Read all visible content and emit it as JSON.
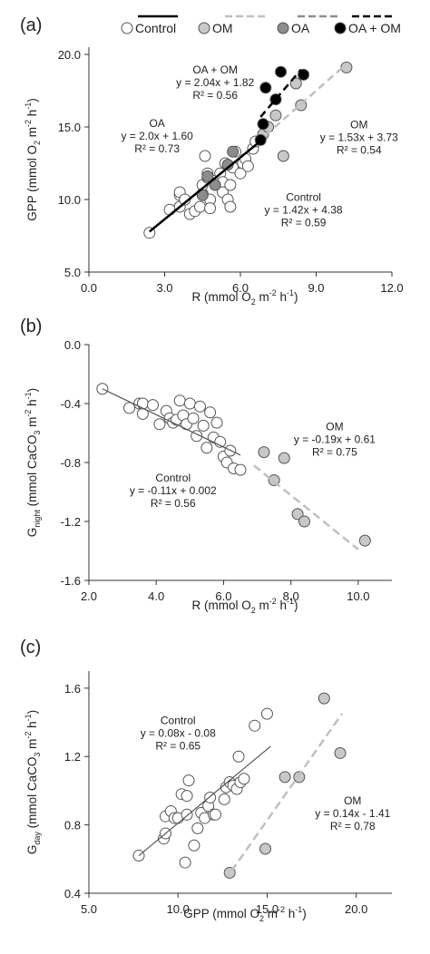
{
  "colors": {
    "control": "#ffffff",
    "om": "#c8c8c8",
    "oa": "#8c8c8c",
    "oa_om": "#000000",
    "outline": "#555555"
  },
  "legend": [
    {
      "label": "Control",
      "line": "solid",
      "line_color": "#000000",
      "fill": "#ffffff"
    },
    {
      "label": "OM",
      "line": "dashed",
      "line_color": "#c0c0c0",
      "fill": "#c8c8c8"
    },
    {
      "label": "OA",
      "line": "dashed",
      "line_color": "#8c8c8c",
      "fill": "#8c8c8c"
    },
    {
      "label": "OA + OM",
      "line": "dashed",
      "line_color": "#000000",
      "fill": "#000000"
    }
  ],
  "chart_data": [
    {
      "panel": "(a)",
      "type": "scatter",
      "xlabel": {
        "main": "R (mmol O",
        "sub": "2",
        "rest": " m",
        "sup": "-2",
        "tail": " h",
        "sup2": "-1",
        "end": ")"
      },
      "ylabel": {
        "main": "GPP (mmol O",
        "sub": "2",
        "rest": " m",
        "sup": "-2",
        "tail": " h",
        "sup2": "-1",
        "end": ")"
      },
      "xlim": [
        0,
        12
      ],
      "ylim": [
        5,
        20.5
      ],
      "xticks": [
        0,
        3,
        6,
        9,
        12
      ],
      "xtick_labels": [
        "0.0",
        "3.0",
        "6.0",
        "9.0",
        "12.0"
      ],
      "yticks": [
        5,
        10,
        15,
        20
      ],
      "ytick_labels": [
        "5.0",
        "10.0",
        "15.0",
        "20.0"
      ],
      "series": [
        {
          "name": "Control",
          "fill": "#ffffff",
          "points": [
            [
              2.4,
              7.7
            ],
            [
              3.2,
              9.3
            ],
            [
              3.6,
              9.5
            ],
            [
              3.6,
              10.3
            ],
            [
              3.6,
              10.5
            ],
            [
              3.8,
              10.0
            ],
            [
              4.0,
              9.0
            ],
            [
              4.2,
              9.2
            ],
            [
              4.4,
              9.5
            ],
            [
              4.5,
              10.4
            ],
            [
              4.5,
              11.0
            ],
            [
              4.6,
              13.0
            ],
            [
              4.7,
              11.5
            ],
            [
              4.7,
              11.8
            ],
            [
              4.8,
              10.0
            ],
            [
              4.8,
              9.4
            ],
            [
              5.0,
              11.3
            ],
            [
              5.2,
              11.8
            ],
            [
              5.3,
              11.2
            ],
            [
              5.3,
              10.5
            ],
            [
              5.4,
              12.5
            ],
            [
              5.5,
              10.0
            ],
            [
              5.6,
              9.5
            ],
            [
              5.6,
              11.0
            ],
            [
              5.7,
              12.2
            ],
            [
              5.8,
              13.3
            ],
            [
              6.0,
              11.8
            ],
            [
              6.1,
              12.5
            ],
            [
              6.2,
              12.8
            ],
            [
              6.3,
              12.3
            ],
            [
              6.5,
              13.5
            ],
            [
              6.6,
              14.0
            ]
          ]
        },
        {
          "name": "OM",
          "fill": "#c8c8c8",
          "points": [
            [
              6.9,
              14.5
            ],
            [
              7.1,
              15.0
            ],
            [
              7.4,
              15.8
            ],
            [
              7.7,
              13.0
            ],
            [
              8.2,
              18.0
            ],
            [
              8.4,
              16.5
            ],
            [
              10.2,
              19.1
            ]
          ]
        },
        {
          "name": "OA",
          "fill": "#8c8c8c",
          "points": [
            [
              4.5,
              10.3
            ],
            [
              4.7,
              11.6
            ],
            [
              5.0,
              11.0
            ],
            [
              5.5,
              12.4
            ],
            [
              5.7,
              13.3
            ]
          ]
        },
        {
          "name": "OA + OM",
          "fill": "#000000",
          "points": [
            [
              6.8,
              14.1
            ],
            [
              6.9,
              15.2
            ],
            [
              7.0,
              17.7
            ],
            [
              7.4,
              16.9
            ],
            [
              7.6,
              18.8
            ],
            [
              8.5,
              18.6
            ]
          ]
        }
      ],
      "fits": [
        {
          "name": "Control",
          "x": [
            2.4,
            6.8
          ],
          "color": "#000000",
          "dash": "",
          "width": 2.5,
          "slope": 1.42,
          "intercept": 4.38
        },
        {
          "name": "OM",
          "x": [
            7.0,
            10.2
          ],
          "color": "#c0c0c0",
          "dash": "8,5",
          "width": 2.5,
          "slope": 1.53,
          "intercept": 3.73
        },
        {
          "name": "OA + OM",
          "x": [
            6.8,
            8.4
          ],
          "color": "#000000",
          "dash": "8,5",
          "width": 2.5,
          "slope": 2.04,
          "intercept": 1.82
        }
      ],
      "annotations": [
        {
          "lines": [
            "OA + OM",
            "y = 2.04x + 1.82",
            "R² = 0.56"
          ],
          "x": 5.0,
          "y": 18.7
        },
        {
          "lines": [
            "OA",
            "y = 2.0x + 1.60",
            "R² = 0.73"
          ],
          "x": 2.7,
          "y": 15.0
        },
        {
          "lines": [
            "OM",
            "y = 1.53x + 3.73",
            "R² = 0.54"
          ],
          "x": 10.7,
          "y": 14.9
        },
        {
          "lines": [
            "Control",
            "y = 1.42x + 4.38",
            "R² = 0.59"
          ],
          "x": 8.5,
          "y": 9.9
        }
      ]
    },
    {
      "panel": "(b)",
      "type": "scatter",
      "xlabel": {
        "main": "R (mmol O",
        "sub": "2",
        "rest": " m",
        "sup": "-2",
        "tail": " h",
        "sup2": "-1",
        "end": ")"
      },
      "ylabel": {
        "main": "G",
        "sub": "night",
        "rest": " (mmol CaCO",
        "sup": "",
        "tail": "",
        "sup2": "",
        "end": "",
        "sub2": "3",
        "after": " m",
        "sup3": "-2",
        "after2": " h",
        "sup4": "-1",
        "after3": ")"
      },
      "xlim": [
        2,
        11
      ],
      "ylim": [
        -1.6,
        0
      ],
      "xticks": [
        2,
        4,
        6,
        8,
        10
      ],
      "xtick_labels": [
        "2.0",
        "4.0",
        "6.0",
        "8.0",
        "10.0"
      ],
      "yticks": [
        0,
        -0.4,
        -0.8,
        -1.2,
        -1.6
      ],
      "ytick_labels": [
        "0.0",
        "-0.4",
        "-0.8",
        "-1.2",
        "-1.6"
      ],
      "series": [
        {
          "name": "Control",
          "fill": "#ffffff",
          "points": [
            [
              2.4,
              -0.3
            ],
            [
              3.2,
              -0.43
            ],
            [
              3.5,
              -0.4
            ],
            [
              3.6,
              -0.47
            ],
            [
              3.6,
              -0.4
            ],
            [
              3.9,
              -0.41
            ],
            [
              4.1,
              -0.54
            ],
            [
              4.3,
              -0.45
            ],
            [
              4.4,
              -0.5
            ],
            [
              4.5,
              -0.53
            ],
            [
              4.6,
              -0.51
            ],
            [
              4.7,
              -0.38
            ],
            [
              4.8,
              -0.48
            ],
            [
              4.9,
              -0.54
            ],
            [
              5.0,
              -0.4
            ],
            [
              5.1,
              -0.5
            ],
            [
              5.2,
              -0.62
            ],
            [
              5.3,
              -0.42
            ],
            [
              5.4,
              -0.55
            ],
            [
              5.5,
              -0.7
            ],
            [
              5.6,
              -0.46
            ],
            [
              5.7,
              -0.63
            ],
            [
              5.8,
              -0.53
            ],
            [
              5.9,
              -0.66
            ],
            [
              6.0,
              -0.76
            ],
            [
              6.1,
              -0.8
            ],
            [
              6.2,
              -0.72
            ],
            [
              6.3,
              -0.84
            ],
            [
              6.5,
              -0.85
            ]
          ]
        },
        {
          "name": "OM",
          "fill": "#c8c8c8",
          "points": [
            [
              7.2,
              -0.73
            ],
            [
              7.5,
              -0.92
            ],
            [
              7.8,
              -0.77
            ],
            [
              8.2,
              -1.15
            ],
            [
              8.4,
              -1.2
            ],
            [
              10.2,
              -1.33
            ]
          ]
        }
      ],
      "fits": [
        {
          "name": "Control",
          "x": [
            2.4,
            6.5
          ],
          "color": "#555555",
          "dash": "",
          "width": 1.2,
          "y_pts": [
            -0.3,
            -0.75
          ]
        },
        {
          "name": "OM",
          "x": [
            6.9,
            10.0
          ],
          "color": "#c0c0c0",
          "dash": "9,5",
          "width": 2.5,
          "slope": -0.19,
          "intercept": 0.61,
          "y_pts": [
            -0.82,
            -1.39
          ]
        }
      ],
      "annotations": [
        {
          "lines": [
            "OM",
            "y = -0.19x + 0.61",
            "R² = 0.75"
          ],
          "x": 9.3,
          "y": -0.58
        },
        {
          "lines": [
            "Control",
            "y = -0.11x + 0.002",
            "R² = 0.56"
          ],
          "x": 4.5,
          "y": -0.93
        }
      ]
    },
    {
      "panel": "(c)",
      "type": "scatter",
      "xlabel": {
        "main": "GPP (mmol O",
        "sub": "2",
        "rest": " m",
        "sup": "-2",
        "tail": " h",
        "sup2": "-1",
        "end": ")"
      },
      "ylabel": {
        "main": "G",
        "sub": "day",
        "rest": " (mmol CaCO",
        "sub2": "3",
        "after": " m",
        "sup3": "-2",
        "after2": " h",
        "sup4": "-1",
        "after3": ")"
      },
      "xlim": [
        5,
        22
      ],
      "ylim": [
        0.4,
        1.7
      ],
      "xticks": [
        5,
        10,
        15,
        20
      ],
      "xtick_labels": [
        "5.0",
        "10.0",
        "15.0",
        "20.0"
      ],
      "yticks": [
        0.4,
        0.8,
        1.2,
        1.6
      ],
      "ytick_labels": [
        "0.4",
        "0.8",
        "1.2",
        "1.6"
      ],
      "series": [
        {
          "name": "Control",
          "fill": "#ffffff",
          "points": [
            [
              7.8,
              0.62
            ],
            [
              9.2,
              0.72
            ],
            [
              9.3,
              0.85
            ],
            [
              9.3,
              0.75
            ],
            [
              9.6,
              0.88
            ],
            [
              9.8,
              0.84
            ],
            [
              10.0,
              0.84
            ],
            [
              10.2,
              0.98
            ],
            [
              10.4,
              0.58
            ],
            [
              10.5,
              0.86
            ],
            [
              10.5,
              0.97
            ],
            [
              10.6,
              1.06
            ],
            [
              10.9,
              0.68
            ],
            [
              11.1,
              0.78
            ],
            [
              11.3,
              0.87
            ],
            [
              11.5,
              0.84
            ],
            [
              11.7,
              0.91
            ],
            [
              11.8,
              0.96
            ],
            [
              12.0,
              0.86
            ],
            [
              12.1,
              0.86
            ],
            [
              12.6,
              0.95
            ],
            [
              12.7,
              1.02
            ],
            [
              12.9,
              1.05
            ],
            [
              13.1,
              1.03
            ],
            [
              13.3,
              1.01
            ],
            [
              13.4,
              1.2
            ],
            [
              13.5,
              1.05
            ],
            [
              13.7,
              1.07
            ],
            [
              14.3,
              1.38
            ],
            [
              15.0,
              1.45
            ]
          ]
        },
        {
          "name": "OM",
          "fill": "#c8c8c8",
          "points": [
            [
              12.9,
              0.52
            ],
            [
              14.9,
              0.66
            ],
            [
              16.0,
              1.08
            ],
            [
              16.8,
              1.08
            ],
            [
              18.2,
              1.54
            ],
            [
              19.1,
              1.22
            ]
          ]
        }
      ],
      "fits": [
        {
          "name": "Control",
          "x": [
            7.8,
            15.2
          ],
          "color": "#555555",
          "dash": "",
          "width": 1.2,
          "y_pts": [
            0.62,
            1.26
          ]
        },
        {
          "name": "OM",
          "x": [
            13.0,
            19.2
          ],
          "color": "#c0c0c0",
          "dash": "9,5",
          "width": 2.5,
          "slope": 0.14,
          "intercept": -1.41,
          "y_pts": [
            0.53,
            1.45
          ]
        }
      ],
      "annotations": [
        {
          "lines": [
            "Control",
            "y = 0.08x - 0.08",
            "R² = 0.65"
          ],
          "x": 10.0,
          "y": 1.39
        },
        {
          "lines": [
            "OM",
            "y = 0.14x - 1.41",
            "R² = 0.78"
          ],
          "x": 19.8,
          "y": 0.92
        }
      ]
    }
  ]
}
